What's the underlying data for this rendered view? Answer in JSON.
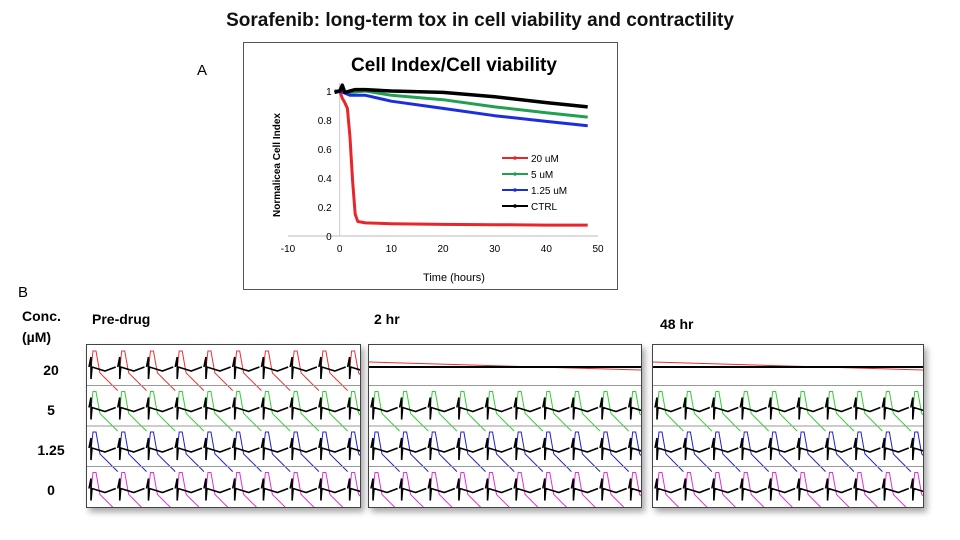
{
  "title": "Sorafenib: long-term tox in cell viability and contractility",
  "panel_a_label": "A",
  "panel_b_label": "B",
  "chart_data": {
    "type": "line",
    "title": "Cell Index/Cell viability",
    "xlabel": "Time (hours)",
    "ylabel": "Normalicea Cell Index",
    "xlim": [
      -10,
      50
    ],
    "ylim": [
      0,
      1.05
    ],
    "xticks": [
      -10,
      0,
      10,
      20,
      30,
      40,
      50
    ],
    "yticks": [
      0,
      0.2,
      0.4,
      0.6,
      0.8,
      1
    ],
    "ytick_labels": [
      "0",
      "0.2",
      "0.4",
      "0.6",
      "0.8",
      "1"
    ],
    "legend_position": "center-right",
    "grid": false,
    "series": [
      {
        "name": "20 uM",
        "color": "#e8262a",
        "x": [
          0,
          0.5,
          1,
          1.5,
          2,
          2.5,
          3,
          3.5,
          5,
          10,
          20,
          30,
          40,
          48
        ],
        "y": [
          1,
          0.95,
          0.92,
          0.88,
          0.68,
          0.38,
          0.15,
          0.1,
          0.09,
          0.085,
          0.08,
          0.078,
          0.075,
          0.075
        ]
      },
      {
        "name": "5 uM",
        "color": "#20a050",
        "x": [
          -1,
          0,
          2,
          5,
          10,
          20,
          30,
          40,
          48
        ],
        "y": [
          1,
          1,
          0.99,
          1.0,
          0.97,
          0.94,
          0.89,
          0.85,
          0.82
        ]
      },
      {
        "name": "1.25 uM",
        "color": "#1a2ee0",
        "x": [
          -1,
          0,
          2,
          5,
          10,
          20,
          30,
          40,
          48
        ],
        "y": [
          1,
          1,
          0.97,
          0.97,
          0.93,
          0.88,
          0.83,
          0.79,
          0.76
        ]
      },
      {
        "name": "CTRL",
        "color": "#000000",
        "x": [
          -1,
          0,
          0.5,
          1,
          3,
          5,
          10,
          20,
          30,
          40,
          48
        ],
        "y": [
          0.99,
          1,
          1.04,
          0.99,
          1.01,
          1.01,
          1.0,
          0.99,
          0.96,
          0.92,
          0.89
        ]
      }
    ]
  },
  "contractility": {
    "conc_header": [
      "Conc.",
      "(µM)"
    ],
    "time_points": [
      "Pre-drug",
      "2 hr",
      "48 hr"
    ],
    "rows": [
      {
        "conc": "20",
        "color": "#e83030",
        "beating": [
          true,
          false,
          false
        ]
      },
      {
        "conc": "5",
        "color": "#30d030",
        "beating": [
          true,
          true,
          true
        ]
      },
      {
        "conc": "1.25",
        "color": "#2020c8",
        "beating": [
          true,
          true,
          true
        ]
      },
      {
        "conc": "0",
        "color": "#e030d8",
        "beating": [
          true,
          true,
          true
        ]
      }
    ]
  }
}
